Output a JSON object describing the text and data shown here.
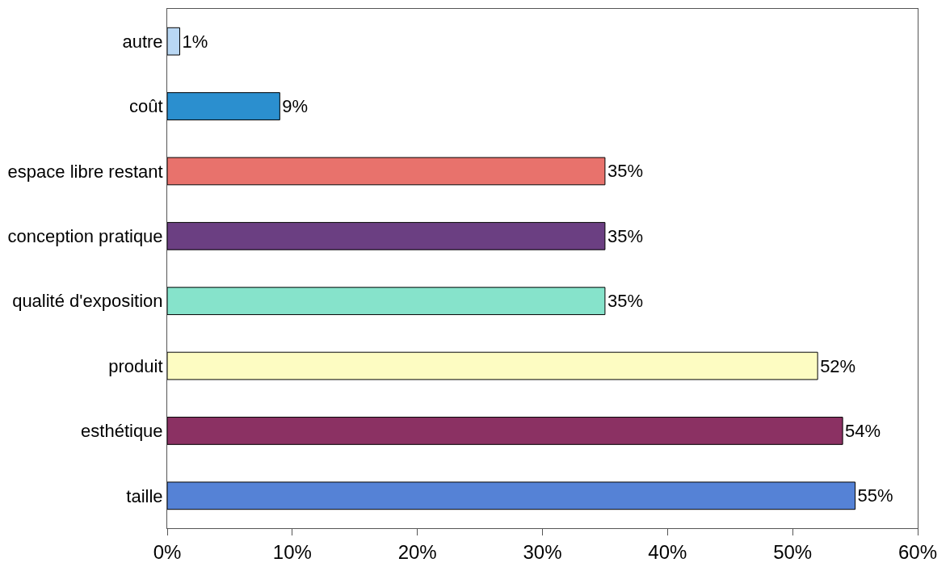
{
  "chart_data": {
    "type": "bar",
    "orientation": "horizontal",
    "categories": [
      "autre",
      "coût",
      "espace libre restant",
      "conception pratique",
      "qualité d'exposition",
      "produit",
      "esthétique",
      "taille"
    ],
    "values": [
      1,
      9,
      35,
      35,
      35,
      52,
      54,
      55
    ],
    "value_labels": [
      "1%",
      "9%",
      "35%",
      "35%",
      "35%",
      "52%",
      "54%",
      "55%"
    ],
    "colors": [
      "#b9d7f3",
      "#2b8fcf",
      "#e8726c",
      "#6b3f82",
      "#86e3cb",
      "#fdfcc2",
      "#8b3163",
      "#5582d6"
    ],
    "xlim": [
      0,
      60
    ],
    "xticks": [
      {
        "value": 0,
        "label": "0%"
      },
      {
        "value": 10,
        "label": "10%"
      },
      {
        "value": 20,
        "label": "20%"
      },
      {
        "value": 30,
        "label": "30%"
      },
      {
        "value": 40,
        "label": "40%"
      },
      {
        "value": 50,
        "label": "50%"
      },
      {
        "value": 60,
        "label": "60%"
      }
    ],
    "grid": false
  }
}
